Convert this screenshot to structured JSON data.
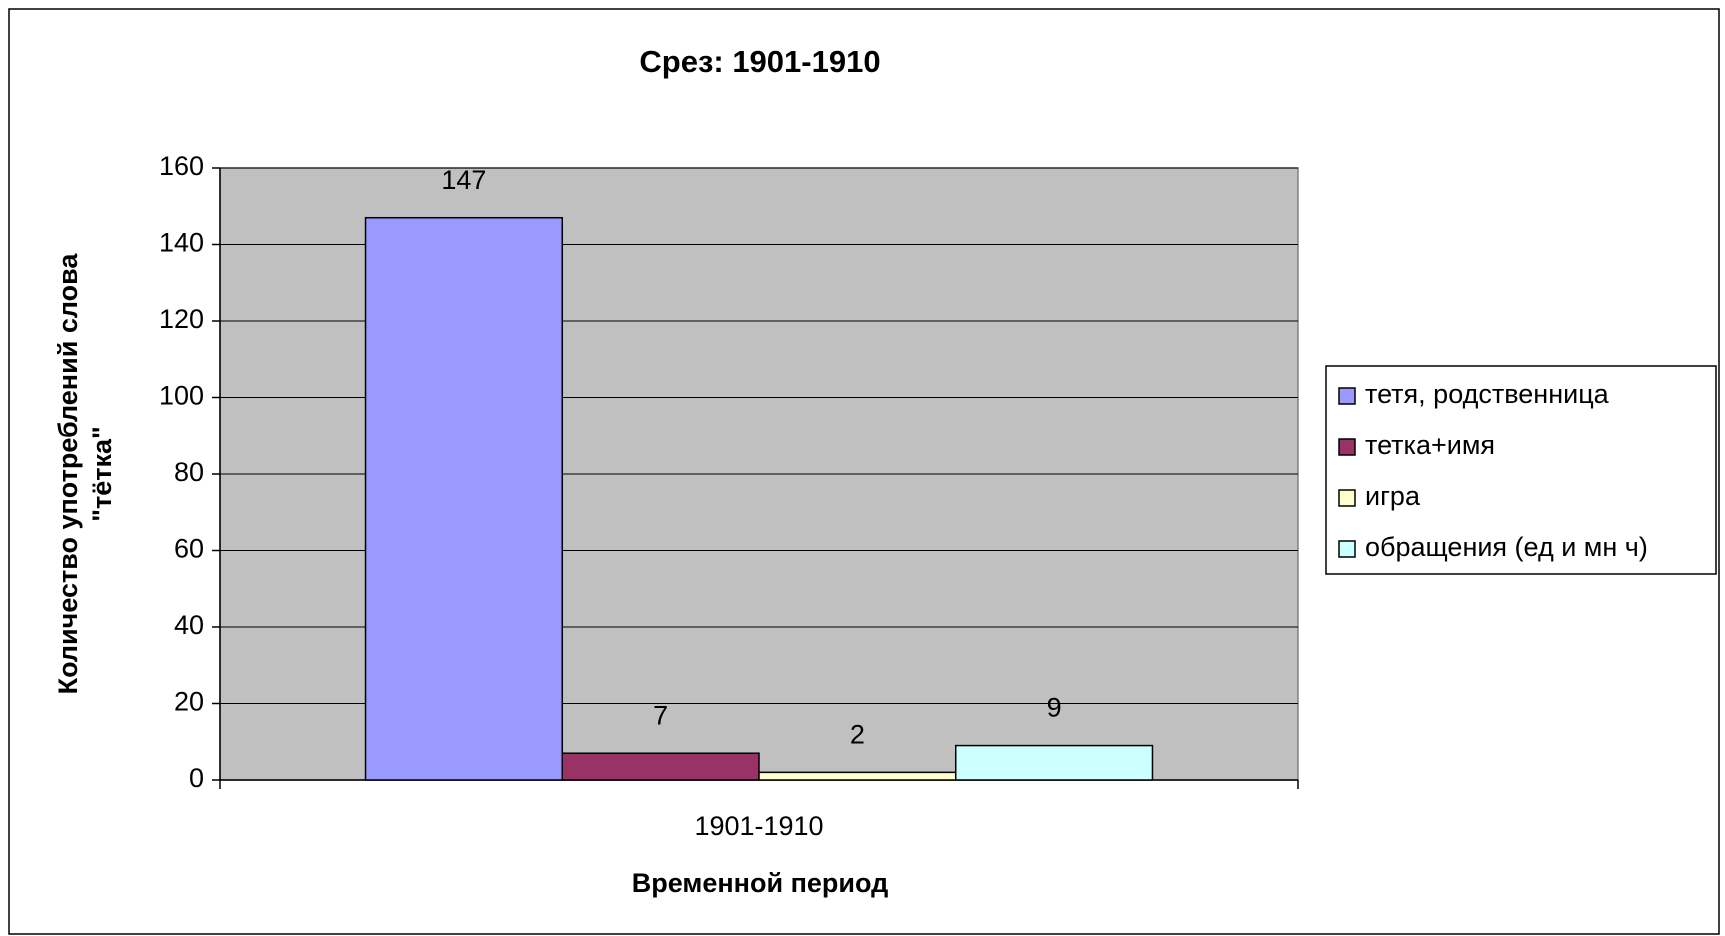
{
  "chart_data": {
    "type": "bar",
    "title": "Срез: 1901-1910",
    "y_label": [
      "Количество употреблений слова",
      "\"тётка\""
    ],
    "x_label": "Временной период",
    "categories": [
      "1901-1910"
    ],
    "series": [
      {
        "name": "тетя, родственница",
        "color": "#9999ff",
        "values": [
          147
        ]
      },
      {
        "name": "тетка+имя",
        "color": "#993366",
        "values": [
          7
        ]
      },
      {
        "name": "игра",
        "color": "#ffffcc",
        "values": [
          2
        ]
      },
      {
        "name": "обращения (ед и мн ч)",
        "color": "#ccffff",
        "values": [
          9
        ]
      }
    ],
    "ylim": [
      0,
      160
    ],
    "yticks": [
      0,
      20,
      40,
      60,
      80,
      100,
      120,
      140,
      160
    ],
    "grid": true,
    "plot_background": "#c0c0c0",
    "legend": "right"
  }
}
